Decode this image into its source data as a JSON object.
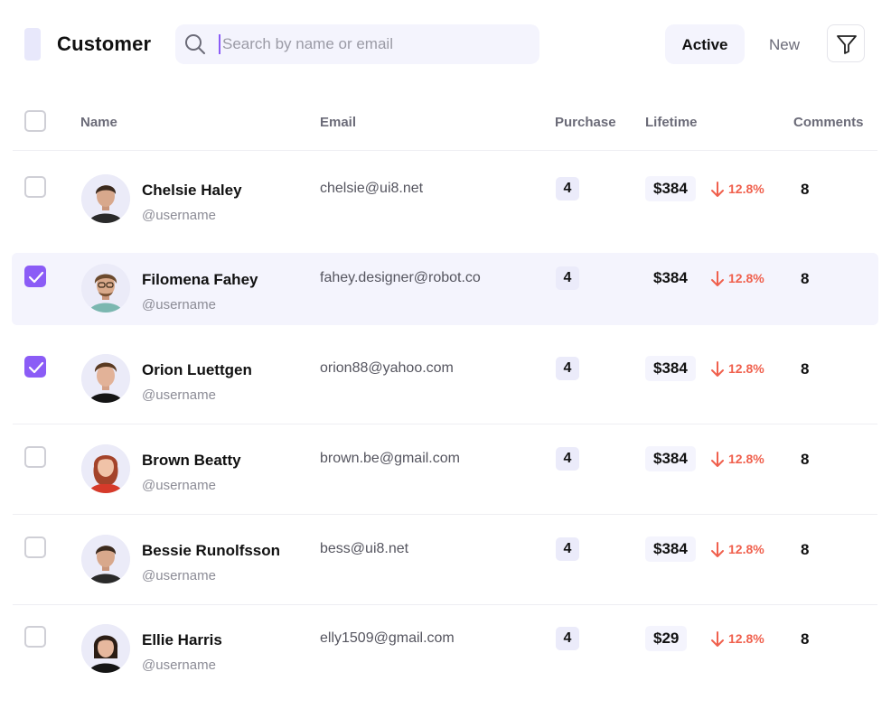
{
  "header": {
    "title": "Customer",
    "search_placeholder": "Search by name or email",
    "active_label": "Active",
    "new_label": "New"
  },
  "columns": {
    "name": "Name",
    "email": "Email",
    "purchase": "Purchase",
    "lifetime": "Lifetime",
    "comments": "Comments"
  },
  "colors": {
    "accent": "#8b5cf6",
    "trend_down": "#f0604d",
    "highlight_row": "#f4f4fd"
  },
  "rows": [
    {
      "name": "Chelsie Haley",
      "handle": "@username",
      "email": "chelsie@ui8.net",
      "purchase": "4",
      "lifetime": "$384",
      "trend": "12.8%",
      "comments": "8",
      "checked": false
    },
    {
      "name": "Filomena Fahey",
      "handle": "@username",
      "email": "fahey.designer@robot.co",
      "purchase": "4",
      "lifetime": "$384",
      "trend": "12.8%",
      "comments": "8",
      "checked": true
    },
    {
      "name": "Orion Luettgen",
      "handle": "@username",
      "email": "orion88@yahoo.com",
      "purchase": "4",
      "lifetime": "$384",
      "trend": "12.8%",
      "comments": "8",
      "checked": true
    },
    {
      "name": "Brown Beatty",
      "handle": "@username",
      "email": "brown.be@gmail.com",
      "purchase": "4",
      "lifetime": "$384",
      "trend": "12.8%",
      "comments": "8",
      "checked": false
    },
    {
      "name": "Bessie Runolfsson",
      "handle": "@username",
      "email": "bess@ui8.net",
      "purchase": "4",
      "lifetime": "$384",
      "trend": "12.8%",
      "comments": "8",
      "checked": false
    },
    {
      "name": "Ellie Harris",
      "handle": "@username",
      "email": "elly1509@gmail.com",
      "purchase": "4",
      "lifetime": "$29",
      "trend": "12.8%",
      "comments": "8",
      "checked": false
    }
  ]
}
